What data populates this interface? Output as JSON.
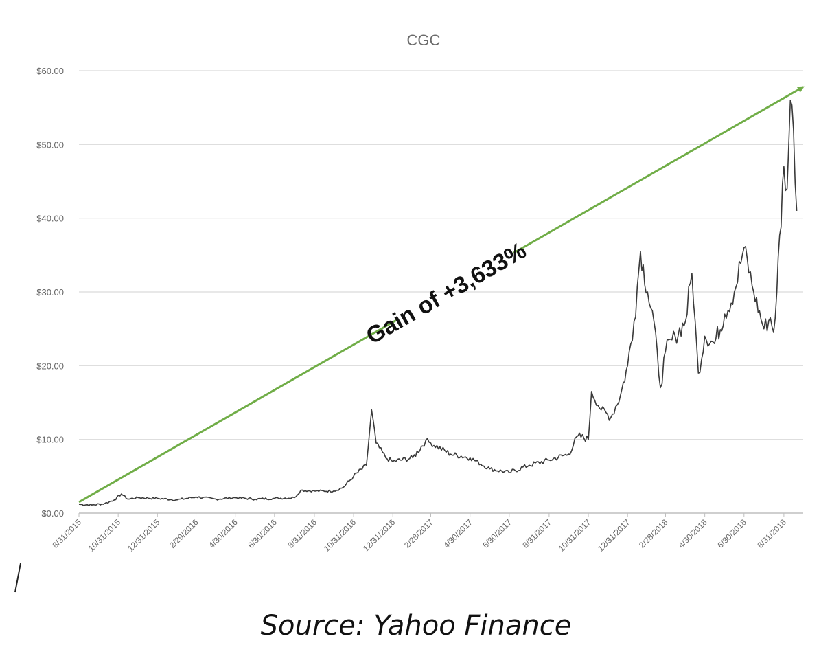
{
  "chart_data": {
    "type": "line",
    "title": "CGC",
    "xlabel": "",
    "ylabel": "",
    "ylim": [
      0,
      60
    ],
    "y_ticks": [
      "$0.00",
      "$10.00",
      "$20.00",
      "$30.00",
      "$40.00",
      "$50.00",
      "$60.00"
    ],
    "y_tick_values": [
      0,
      10,
      20,
      30,
      40,
      50,
      60
    ],
    "x_range": [
      "2015-08-31",
      "2018-09-30"
    ],
    "x_ticks": [
      "8/31/2015",
      "10/31/2015",
      "12/31/2015",
      "2/29/2016",
      "4/30/2016",
      "6/30/2016",
      "8/31/2016",
      "10/31/2016",
      "12/31/2016",
      "2/28/2017",
      "4/30/2017",
      "6/30/2017",
      "8/31/2017",
      "10/31/2017",
      "12/31/2017",
      "2/28/2018",
      "4/30/2018",
      "6/30/2018",
      "8/31/2018"
    ],
    "x_tick_dates": [
      "2015-08-31",
      "2015-10-31",
      "2015-12-31",
      "2016-02-29",
      "2016-04-30",
      "2016-06-30",
      "2016-08-31",
      "2016-10-31",
      "2016-12-31",
      "2017-02-28",
      "2017-04-30",
      "2017-06-30",
      "2017-08-31",
      "2017-10-31",
      "2017-12-31",
      "2018-02-28",
      "2018-04-30",
      "2018-06-30",
      "2018-08-31"
    ],
    "grid": true,
    "series": [
      {
        "color": "#3a3a3a",
        "points": [
          [
            "2015-08-31",
            1.2
          ],
          [
            "2015-09-20",
            1.1
          ],
          [
            "2015-10-10",
            1.3
          ],
          [
            "2015-10-25",
            1.8
          ],
          [
            "2015-11-05",
            2.6
          ],
          [
            "2015-11-15",
            1.9
          ],
          [
            "2015-12-01",
            2.1
          ],
          [
            "2015-12-31",
            2.0
          ],
          [
            "2016-01-31",
            1.8
          ],
          [
            "2016-02-29",
            2.2
          ],
          [
            "2016-03-31",
            1.9
          ],
          [
            "2016-04-30",
            2.1
          ],
          [
            "2016-05-31",
            1.9
          ],
          [
            "2016-06-30",
            2.0
          ],
          [
            "2016-07-31",
            2.1
          ],
          [
            "2016-08-10",
            3.1
          ],
          [
            "2016-08-31",
            3.0
          ],
          [
            "2016-09-30",
            3.0
          ],
          [
            "2016-10-15",
            3.5
          ],
          [
            "2016-10-31",
            5.0
          ],
          [
            "2016-11-20",
            6.5
          ],
          [
            "2016-11-28",
            14.0
          ],
          [
            "2016-12-05",
            9.5
          ],
          [
            "2016-12-20",
            7.5
          ],
          [
            "2016-12-31",
            7.0
          ],
          [
            "2017-01-31",
            7.5
          ],
          [
            "2017-02-20",
            9.8
          ],
          [
            "2017-02-28",
            9.5
          ],
          [
            "2017-03-31",
            8.0
          ],
          [
            "2017-04-30",
            7.5
          ],
          [
            "2017-05-31",
            6.0
          ],
          [
            "2017-06-30",
            5.5
          ],
          [
            "2017-07-31",
            6.5
          ],
          [
            "2017-08-31",
            7.2
          ],
          [
            "2017-09-30",
            8.0
          ],
          [
            "2017-10-15",
            10.5
          ],
          [
            "2017-10-31",
            10.0
          ],
          [
            "2017-11-05",
            16.5
          ],
          [
            "2017-11-20",
            14.0
          ],
          [
            "2017-12-05",
            13.0
          ],
          [
            "2017-12-20",
            16.0
          ],
          [
            "2017-12-31",
            20.0
          ],
          [
            "2018-01-10",
            26.0
          ],
          [
            "2018-01-20",
            35.5
          ],
          [
            "2018-01-31",
            30.0
          ],
          [
            "2018-02-10",
            26.0
          ],
          [
            "2018-02-20",
            17.0
          ],
          [
            "2018-02-28",
            22.0
          ],
          [
            "2018-03-15",
            24.0
          ],
          [
            "2018-03-31",
            26.0
          ],
          [
            "2018-04-10",
            32.5
          ],
          [
            "2018-04-20",
            19.0
          ],
          [
            "2018-04-30",
            24.0
          ],
          [
            "2018-05-15",
            23.0
          ],
          [
            "2018-05-31",
            27.0
          ],
          [
            "2018-06-15",
            30.0
          ],
          [
            "2018-06-30",
            36.0
          ],
          [
            "2018-07-15",
            30.0
          ],
          [
            "2018-07-31",
            25.0
          ],
          [
            "2018-08-10",
            26.5
          ],
          [
            "2018-08-15",
            24.5
          ],
          [
            "2018-08-20",
            30.0
          ],
          [
            "2018-08-31",
            47.0
          ],
          [
            "2018-09-05",
            44.0
          ],
          [
            "2018-09-10",
            56.0
          ],
          [
            "2018-09-15",
            52.0
          ],
          [
            "2018-09-20",
            41.0
          ]
        ]
      }
    ],
    "trend_arrow": {
      "color": "#70ad47",
      "from": [
        "2015-08-31",
        1.5
      ],
      "to": [
        "2018-09-30",
        57.8
      ]
    },
    "annotations": [
      {
        "text": "Gain of +3,633%"
      }
    ]
  },
  "caption": "Source: Yahoo Finance"
}
